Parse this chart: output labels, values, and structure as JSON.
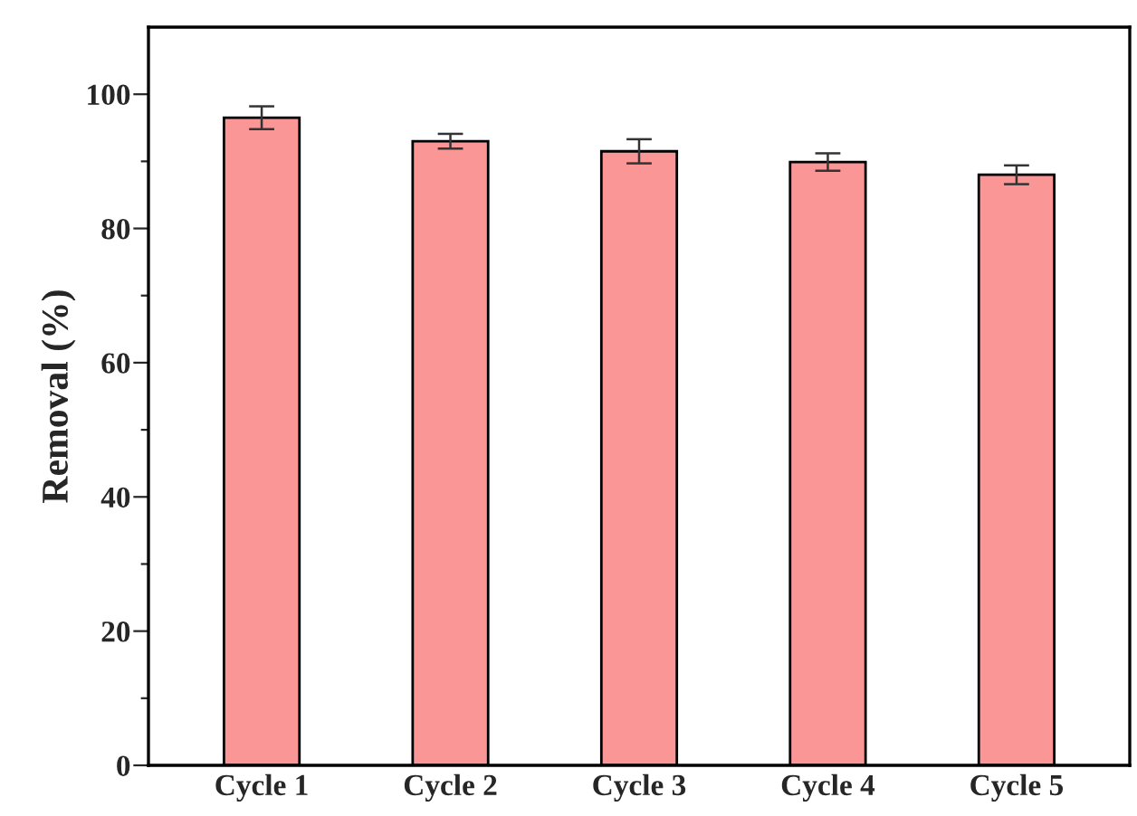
{
  "chart_data": {
    "type": "bar",
    "ylabel": "Removal (%)",
    "categories": [
      "Cycle 1",
      "Cycle 2",
      "Cycle 3",
      "Cycle 4",
      "Cycle 5"
    ],
    "values": [
      96.5,
      93.0,
      91.5,
      89.9,
      88.0
    ],
    "errors": [
      1.7,
      1.1,
      1.8,
      1.3,
      1.4
    ],
    "color": "#fa9696",
    "ylim": [
      0,
      110
    ],
    "yticks": [
      0,
      {
        "value": 10,
        "label": null
      },
      20,
      {
        "value": 30,
        "label": null
      },
      40,
      {
        "value": 50,
        "label": null
      },
      60,
      {
        "value": 70,
        "label": null
      },
      80,
      {
        "value": 90,
        "label": null
      },
      100
    ],
    "grid": false
  }
}
